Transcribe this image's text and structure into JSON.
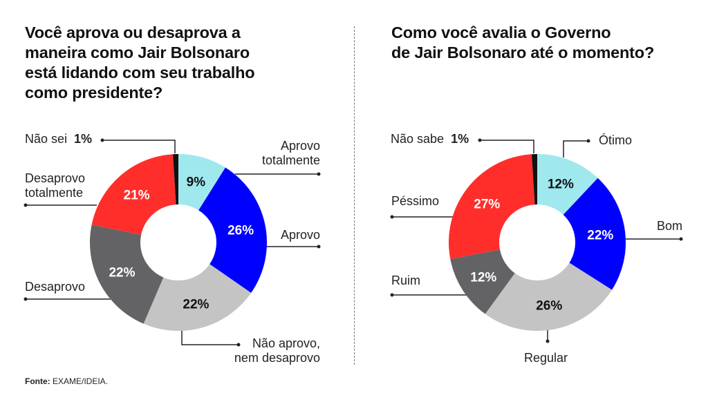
{
  "chart_data": [
    {
      "type": "pie",
      "donut": true,
      "title_lines": [
        "Você aprova ou desaprova a",
        "maneira como Jair Bolsonaro",
        "está lidando com seu trabalho",
        "como presidente?"
      ],
      "categories": [
        "Aprovo totalmente",
        "Aprovo",
        "Não aprovo, nem desaprovo",
        "Desaprovo",
        "Desaprovo totalmente",
        "Não sei"
      ],
      "values": [
        9,
        26,
        22,
        22,
        21,
        1
      ],
      "data_labels": [
        "9%",
        "26%",
        "22%",
        "22%",
        "21%",
        "1%"
      ],
      "colors": [
        "#9fe8ee",
        "#0000ff",
        "#c4c4c4",
        "#636366",
        "#ff2e2b",
        "#111111"
      ],
      "label_text_colors": [
        "#111111",
        "#ffffff",
        "#111111",
        "#ffffff",
        "#ffffff",
        "#111111"
      ],
      "start": "12 o'clock, clockwise"
    },
    {
      "type": "pie",
      "donut": true,
      "title_lines": [
        "Como você avalia o Governo",
        "de Jair Bolsonaro até o momento?"
      ],
      "categories": [
        "Ótimo",
        "Bom",
        "Regular",
        "Ruim",
        "Péssimo",
        "Não sabe"
      ],
      "values": [
        12,
        22,
        26,
        12,
        27,
        1
      ],
      "data_labels": [
        "12%",
        "22%",
        "26%",
        "12%",
        "27%",
        "1%"
      ],
      "colors": [
        "#9fe8ee",
        "#0000ff",
        "#c4c4c4",
        "#636366",
        "#ff2e2b",
        "#111111"
      ],
      "label_text_colors": [
        "#111111",
        "#ffffff",
        "#111111",
        "#ffffff",
        "#ffffff",
        "#111111"
      ],
      "start": "12 o'clock, clockwise"
    }
  ],
  "legend_labels": {
    "left": {
      "aprovo_totalmente": [
        "Aprovo",
        "totalmente"
      ],
      "aprovo": "Aprovo",
      "nao_aprovo": [
        "Não aprovo,",
        "nem desaprovo"
      ],
      "desaprovo": "Desaprovo",
      "desaprovo_totalmente": [
        "Desaprovo",
        "totalmente"
      ],
      "nao_sei": "Não sei",
      "nao_sei_value": "1%"
    },
    "right": {
      "otimo": "Ótimo",
      "bom": "Bom",
      "regular": "Regular",
      "ruim": "Ruim",
      "pessimo": "Péssimo",
      "nao_sabe": "Não sabe",
      "nao_sabe_value": "1%"
    }
  },
  "footer": {
    "source_label": "Fonte:",
    "source_value": "EXAME/IDEIA."
  }
}
